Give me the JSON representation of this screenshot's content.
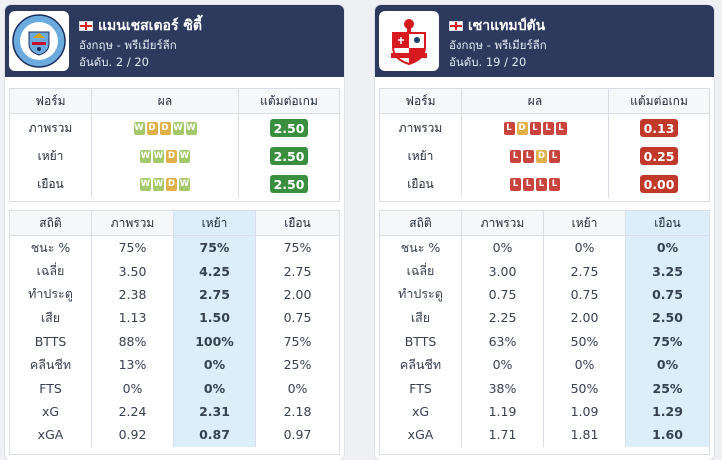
{
  "teams": [
    {
      "name": "แมนเชสเตอร์ ซิตี้",
      "league": "อังกฤษ - พรีเมียร์ลีก",
      "rank": "อันดับ. 2 / 20",
      "form_headers": [
        "ฟอร์ม",
        "ผล",
        "แต้มต่อเกม"
      ],
      "form_rows": [
        {
          "label": "ภาพรวม",
          "results": [
            "W",
            "D",
            "D",
            "W",
            "W"
          ],
          "ppg": "2.50"
        },
        {
          "label": "เหย้า",
          "results": [
            "W",
            "W",
            "D",
            "W"
          ],
          "ppg": "2.50"
        },
        {
          "label": "เยือน",
          "results": [
            "W",
            "W",
            "D",
            "W"
          ],
          "ppg": "2.50"
        }
      ],
      "stats_headers": [
        "สถิติ",
        "ภาพรวม",
        "เหย้า",
        "เยือน"
      ],
      "stats_highlight_column": 2,
      "stats_rows": [
        {
          "label": "ชนะ %",
          "overall": "75%",
          "home": "75%",
          "away": "75%"
        },
        {
          "label": "เฉลี่ย",
          "overall": "3.50",
          "home": "4.25",
          "away": "2.75"
        },
        {
          "label": "ทำประตู",
          "overall": "2.38",
          "home": "2.75",
          "away": "2.00"
        },
        {
          "label": "เสีย",
          "overall": "1.13",
          "home": "1.50",
          "away": "0.75"
        },
        {
          "label": "BTTS",
          "overall": "88%",
          "home": "100%",
          "away": "75%"
        },
        {
          "label": "คลีนชีท",
          "overall": "13%",
          "home": "0%",
          "away": "25%"
        },
        {
          "label": "FTS",
          "overall": "0%",
          "home": "0%",
          "away": "0%"
        },
        {
          "label": "xG",
          "overall": "2.24",
          "home": "2.31",
          "away": "2.18"
        },
        {
          "label": "xGA",
          "overall": "0.92",
          "home": "0.87",
          "away": "0.97"
        }
      ]
    },
    {
      "name": "เซาแทมป์ตัน",
      "league": "อังกฤษ - พรีเมียร์ลีก",
      "rank": "อันดับ. 19 / 20",
      "form_headers": [
        "ฟอร์ม",
        "ผล",
        "แต้มต่อเกม"
      ],
      "form_rows": [
        {
          "label": "ภาพรวม",
          "results": [
            "L",
            "D",
            "L",
            "L",
            "L"
          ],
          "ppg": "0.13"
        },
        {
          "label": "เหย้า",
          "results": [
            "L",
            "L",
            "D",
            "L"
          ],
          "ppg": "0.25"
        },
        {
          "label": "เยือน",
          "results": [
            "L",
            "L",
            "L",
            "L"
          ],
          "ppg": "0.00"
        }
      ],
      "stats_headers": [
        "สถิติ",
        "ภาพรวม",
        "เหย้า",
        "เยือน"
      ],
      "stats_highlight_column": 3,
      "stats_rows": [
        {
          "label": "ชนะ %",
          "overall": "0%",
          "home": "0%",
          "away": "0%"
        },
        {
          "label": "เฉลี่ย",
          "overall": "3.00",
          "home": "2.75",
          "away": "3.25"
        },
        {
          "label": "ทำประตู",
          "overall": "0.75",
          "home": "0.75",
          "away": "0.75"
        },
        {
          "label": "เสีย",
          "overall": "2.25",
          "home": "2.00",
          "away": "2.50"
        },
        {
          "label": "BTTS",
          "overall": "63%",
          "home": "50%",
          "away": "75%"
        },
        {
          "label": "คลีนชีท",
          "overall": "0%",
          "home": "0%",
          "away": "0%"
        },
        {
          "label": "FTS",
          "overall": "38%",
          "home": "50%",
          "away": "25%"
        },
        {
          "label": "xG",
          "overall": "1.19",
          "home": "1.09",
          "away": "1.29"
        },
        {
          "label": "xGA",
          "overall": "1.71",
          "home": "1.81",
          "away": "1.60"
        }
      ]
    }
  ],
  "logo_icons": [
    "manchester-city-crest-icon",
    "southampton-crest-icon"
  ],
  "colors": {
    "header_bg": "#2d3a5e",
    "win": "#a4c86a",
    "draw": "#e0b04a",
    "loss": "#c9443d",
    "ppg_good": "#3a8f3e",
    "ppg_bad": "#c0392b",
    "highlight": "#dceefa"
  }
}
